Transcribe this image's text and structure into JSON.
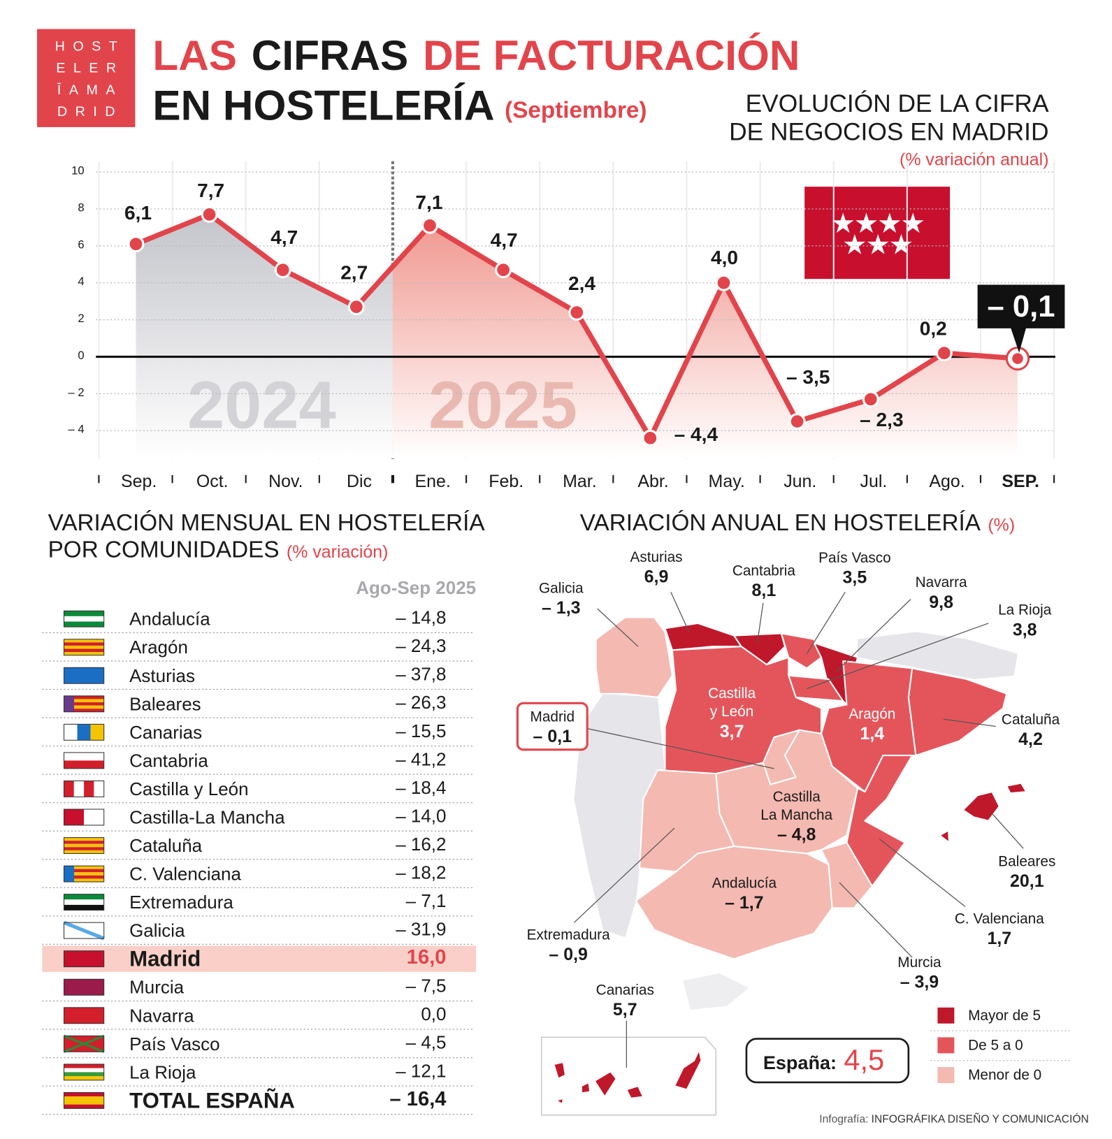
{
  "header": {
    "logo": [
      "HOST",
      "ELER",
      "ĪAMA",
      "DRID"
    ],
    "title": {
      "part1": "LAS",
      "part2": "CIFRAS",
      "part3": "DE FACTURACIÓN",
      "line2": "EN HOSTELERÍA",
      "month": "(Septiembre)"
    }
  },
  "chart_data": {
    "type": "line",
    "title": [
      "EVOLUCIÓN DE LA CIFRA",
      "DE NEGOCIOS EN MADRID"
    ],
    "subtitle": "(% variación anual)",
    "annotations": [
      "2024",
      "2025"
    ],
    "categories": [
      "Sep.",
      "Oct.",
      "Nov.",
      "Dic",
      "Ene.",
      "Feb.",
      "Mar.",
      "Abr.",
      "May.",
      "Jun.",
      "Jul.",
      "Ago.",
      "SEP."
    ],
    "values": [
      6.1,
      7.7,
      4.7,
      2.7,
      7.1,
      4.7,
      2.4,
      -4.4,
      4.0,
      -3.5,
      -2.3,
      0.2,
      -0.1
    ],
    "value_labels": [
      "6,1",
      "7,7",
      "4,7",
      "2,7",
      "7,1",
      "4,7",
      "2,4",
      "– 4,4",
      "4,0",
      "– 3,5",
      "– 2,3",
      "0,2",
      "– 0,1"
    ],
    "color": "#e2444b",
    "ylim": [
      -5.5,
      10.5
    ],
    "yticks": [
      10,
      8,
      6,
      4,
      2,
      0,
      {
        "value": -2,
        "label": "– 2"
      },
      {
        "value": -4,
        "label": "– 4"
      }
    ],
    "grid": true
  },
  "table": {
    "title": [
      "VARIACIÓN MENSUAL EN HOSTELERÍA",
      "POR COMUNIDADES"
    ],
    "unit": "(% variación)",
    "column": "Ago-Sep 2025",
    "rows": [
      {
        "name": "Andalucía",
        "value": "– 14,8"
      },
      {
        "name": "Aragón",
        "value": "– 24,3"
      },
      {
        "name": "Asturias",
        "value": "– 37,8"
      },
      {
        "name": "Baleares",
        "value": "– 26,3"
      },
      {
        "name": "Canarias",
        "value": "– 15,5"
      },
      {
        "name": "Cantabria",
        "value": "– 41,2"
      },
      {
        "name": "Castilla y León",
        "value": "– 18,4"
      },
      {
        "name": "Castilla-La Mancha",
        "value": "– 14,0"
      },
      {
        "name": "Cataluña",
        "value": "– 16,2"
      },
      {
        "name": "C. Valenciana",
        "value": "– 18,2"
      },
      {
        "name": "Extremadura",
        "value": "– 7,1"
      },
      {
        "name": "Galicia",
        "value": "– 31,9"
      },
      {
        "name": "Madrid",
        "value": "16,0",
        "highlight": true
      },
      {
        "name": "Murcia",
        "value": "– 7,5"
      },
      {
        "name": "Navarra",
        "value": "0,0"
      },
      {
        "name": "País Vasco",
        "value": "– 4,5"
      },
      {
        "name": "La Rioja",
        "value": "– 12,1"
      },
      {
        "name": "TOTAL ESPAÑA",
        "value": "– 16,4",
        "total": true
      }
    ]
  },
  "map": {
    "title": "VARIACIÓN ANUAL EN HOSTELERÍA",
    "unit": "(%)",
    "regions": [
      {
        "name": [
          "Galicia"
        ],
        "value": "– 1,3",
        "color": "#f4b9b1"
      },
      {
        "name": [
          "Asturias"
        ],
        "value": "6,9",
        "color": "#c0182b"
      },
      {
        "name": [
          "Cantabria"
        ],
        "value": "8,1",
        "color": "#c0182b"
      },
      {
        "name": [
          "País Vasco"
        ],
        "value": "3,5",
        "color": "#e4555b"
      },
      {
        "name": [
          "Navarra"
        ],
        "value": "9,8",
        "color": "#c0182b"
      },
      {
        "name": [
          "La Rioja"
        ],
        "value": "3,8",
        "color": "#e4555b"
      },
      {
        "name": [
          "Cataluña"
        ],
        "value": "4,2",
        "color": "#e4555b"
      },
      {
        "name": [
          "Castilla",
          "y León"
        ],
        "value": "3,7",
        "color": "#e4555b"
      },
      {
        "name": [
          "Aragón"
        ],
        "value": "1,4",
        "color": "#e4555b"
      },
      {
        "name": [
          "Madrid"
        ],
        "value": "– 0,1",
        "color": "#f4b9b1"
      },
      {
        "name": [
          "Castilla",
          "La Mancha"
        ],
        "value": "– 4,8",
        "color": "#f4b9b1"
      },
      {
        "name": [
          "Baleares"
        ],
        "value": "20,1",
        "color": "#c0182b"
      },
      {
        "name": [
          "C. Valenciana"
        ],
        "value": "1,7",
        "color": "#e4555b"
      },
      {
        "name": [
          "Extremadura"
        ],
        "value": "– 0,9",
        "color": "#f4b9b1"
      },
      {
        "name": [
          "Andalucía"
        ],
        "value": "– 1,7",
        "color": "#f4b9b1"
      },
      {
        "name": [
          "Murcia"
        ],
        "value": "– 3,9",
        "color": "#f4b9b1"
      },
      {
        "name": [
          "Canarias"
        ],
        "value": "5,7",
        "color": "#c0182b"
      }
    ],
    "legend": [
      {
        "label": "Mayor de 5",
        "color": "#c0182b"
      },
      {
        "label": "De 5 a 0",
        "color": "#e4555b"
      },
      {
        "label": "Menor de 0",
        "color": "#f4b9b1"
      }
    ],
    "spain": {
      "label": "España:",
      "value": "4,5"
    }
  },
  "credit": {
    "label": "Infografía:",
    "text": "INFOGRÁFIKA DISEÑO Y COMUNICACIÓN"
  }
}
